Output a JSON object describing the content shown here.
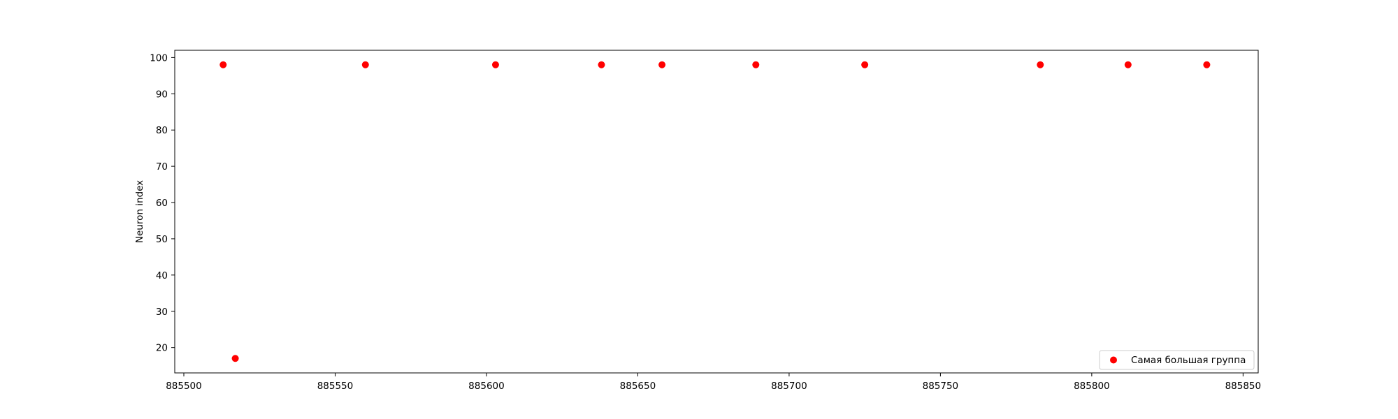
{
  "chart_data": {
    "type": "scatter",
    "title": "",
    "xlabel": "",
    "ylabel": "Neuron index",
    "xlim": [
      885497,
      885855
    ],
    "ylim": [
      13,
      102
    ],
    "xticks": [
      885500,
      885550,
      885600,
      885650,
      885700,
      885750,
      885800,
      885850
    ],
    "xtick_labels": [
      "885500",
      "885550",
      "885600",
      "885650",
      "885700",
      "885750",
      "885800",
      "885850"
    ],
    "yticks": [
      20,
      30,
      40,
      50,
      60,
      70,
      80,
      90,
      100
    ],
    "ytick_labels": [
      "20",
      "30",
      "40",
      "50",
      "60",
      "70",
      "80",
      "90",
      "100"
    ],
    "grid": false,
    "legend_position": "lower-right",
    "series": [
      {
        "name": "Самая большая группа",
        "color": "#ff0000",
        "marker": "circle",
        "x": [
          885513,
          885517,
          885560,
          885603,
          885638,
          885658,
          885689,
          885725,
          885783,
          885812,
          885838
        ],
        "y": [
          98,
          17,
          98,
          98,
          98,
          98,
          98,
          98,
          98,
          98,
          98
        ]
      }
    ]
  }
}
